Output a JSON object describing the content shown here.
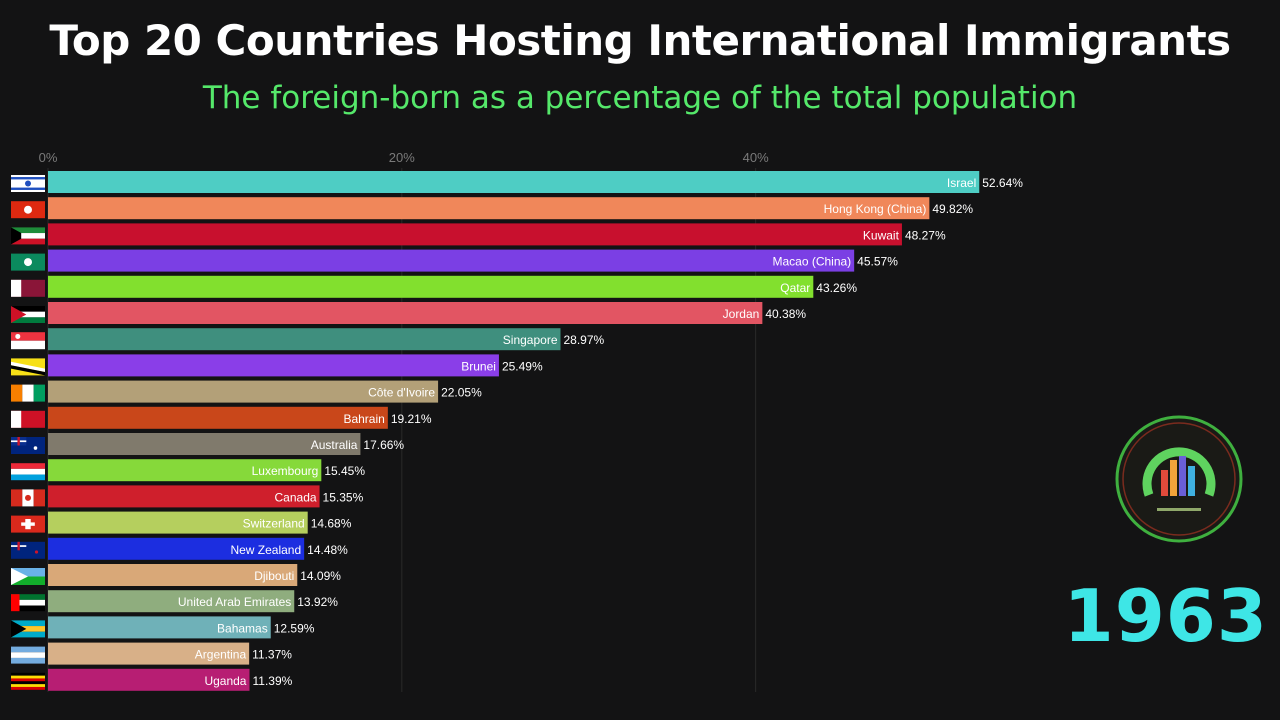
{
  "title": "Top 20 Countries Hosting International Immigrants",
  "subtitle": "The foreign-born as a percentage of the total population",
  "year": "1963",
  "colors": {
    "background": "#131314",
    "title": "#ffffff",
    "subtitle": "#55e86a",
    "year": "#3ee6e6"
  },
  "chart_data": {
    "type": "bar",
    "orientation": "horizontal",
    "xlim": [
      0,
      55
    ],
    "ticks": [
      {
        "value": 0,
        "label": "0%"
      },
      {
        "value": 20,
        "label": "20%"
      },
      {
        "value": 40,
        "label": "40%"
      }
    ],
    "grid": true,
    "bars": [
      {
        "category": "Israel",
        "value": 52.64,
        "value_label": "52.64%",
        "color": "#4ecdc4",
        "flag": "israel-flag-icon"
      },
      {
        "category": "Hong Kong (China)",
        "value": 49.82,
        "value_label": "49.82%",
        "color": "#f0875a",
        "flag": "hong-kong-flag-icon"
      },
      {
        "category": "Kuwait",
        "value": 48.27,
        "value_label": "48.27%",
        "color": "#c8102e",
        "flag": "kuwait-flag-icon"
      },
      {
        "category": "Macao (China)",
        "value": 45.57,
        "value_label": "45.57%",
        "color": "#7b3fe4",
        "flag": "macao-flag-icon"
      },
      {
        "category": "Qatar",
        "value": 43.26,
        "value_label": "43.26%",
        "color": "#82e02e",
        "flag": "qatar-flag-icon"
      },
      {
        "category": "Jordan",
        "value": 40.38,
        "value_label": "40.38%",
        "color": "#e25563",
        "flag": "jordan-flag-icon"
      },
      {
        "category": "Singapore",
        "value": 28.97,
        "value_label": "28.97%",
        "color": "#3f8f7e",
        "flag": "singapore-flag-icon"
      },
      {
        "category": "Brunei",
        "value": 25.49,
        "value_label": "25.49%",
        "color": "#8a3ee8",
        "flag": "brunei-flag-icon"
      },
      {
        "category": "Côte d'Ivoire",
        "value": 22.05,
        "value_label": "22.05%",
        "color": "#b3a078",
        "flag": "cote-divoire-flag-icon"
      },
      {
        "category": "Bahrain",
        "value": 19.21,
        "value_label": "19.21%",
        "color": "#c9471a",
        "flag": "bahrain-flag-icon"
      },
      {
        "category": "Australia",
        "value": 17.66,
        "value_label": "17.66%",
        "color": "#807a6c",
        "flag": "australia-flag-icon"
      },
      {
        "category": "Luxembourg",
        "value": 15.45,
        "value_label": "15.45%",
        "color": "#86d93a",
        "flag": "luxembourg-flag-icon"
      },
      {
        "category": "Canada",
        "value": 15.35,
        "value_label": "15.35%",
        "color": "#cf1f2c",
        "flag": "canada-flag-icon"
      },
      {
        "category": "Switzerland",
        "value": 14.68,
        "value_label": "14.68%",
        "color": "#b5cf5e",
        "flag": "switzerland-flag-icon"
      },
      {
        "category": "New Zealand",
        "value": 14.48,
        "value_label": "14.48%",
        "color": "#1c2ee0",
        "flag": "new-zealand-flag-icon"
      },
      {
        "category": "Djibouti",
        "value": 14.09,
        "value_label": "14.09%",
        "color": "#d9a878",
        "flag": "djibouti-flag-icon"
      },
      {
        "category": "United Arab Emirates",
        "value": 13.92,
        "value_label": "13.92%",
        "color": "#8fad7e",
        "flag": "uae-flag-icon"
      },
      {
        "category": "Bahamas",
        "value": 12.59,
        "value_label": "12.59%",
        "color": "#6fb1b8",
        "flag": "bahamas-flag-icon"
      },
      {
        "category": "Argentina",
        "value": 11.37,
        "value_label": "11.37%",
        "color": "#d8b088",
        "flag": "argentina-flag-icon"
      },
      {
        "category": "Uganda",
        "value": 11.39,
        "value_label": "11.39%",
        "color": "#b71e73",
        "flag": "uganda-flag-icon"
      }
    ]
  }
}
